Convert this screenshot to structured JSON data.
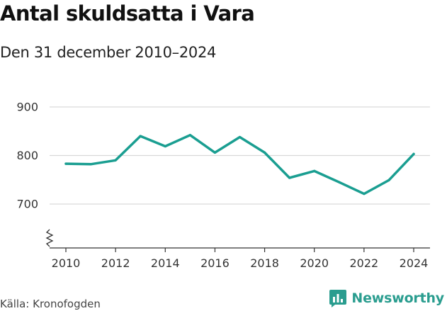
{
  "header": {
    "title": "Antal skuldsatta i Vara",
    "subtitle": "Den 31 december 2010–2024"
  },
  "footer": {
    "source": "Källa: Kronofogden",
    "brand": "Newsworthy",
    "brand_icon": "newsworthy-logo-icon"
  },
  "colors": {
    "line": "#1a9e91",
    "brand": "#2a9d8f",
    "grid": "#d9d9d9",
    "axis": "#333333"
  },
  "chart_data": {
    "type": "line",
    "title": "Antal skuldsatta i Vara",
    "subtitle": "Den 31 december 2010–2024",
    "xlabel": "",
    "ylabel": "",
    "x": [
      2010,
      2011,
      2012,
      2013,
      2014,
      2015,
      2016,
      2017,
      2018,
      2019,
      2020,
      2021,
      2022,
      2023,
      2024
    ],
    "series": [
      {
        "name": "Antal skuldsatta",
        "values": [
          783,
          782,
          790,
          840,
          819,
          842,
          806,
          838,
          806,
          754,
          768,
          745,
          721,
          749,
          803
        ]
      }
    ],
    "y_ticks": [
      700,
      800,
      900
    ],
    "y_tick_labels": [
      "700",
      "800",
      "900"
    ],
    "x_ticks": [
      2010,
      2012,
      2014,
      2016,
      2018,
      2020,
      2022,
      2024
    ],
    "x_tick_labels": [
      "2010",
      "2012",
      "2014",
      "2016",
      "2018",
      "2020",
      "2022",
      "2024"
    ],
    "xlim": [
      2010,
      2024
    ],
    "ylim": [
      615,
      900
    ],
    "axis_break": true,
    "grid": true
  }
}
